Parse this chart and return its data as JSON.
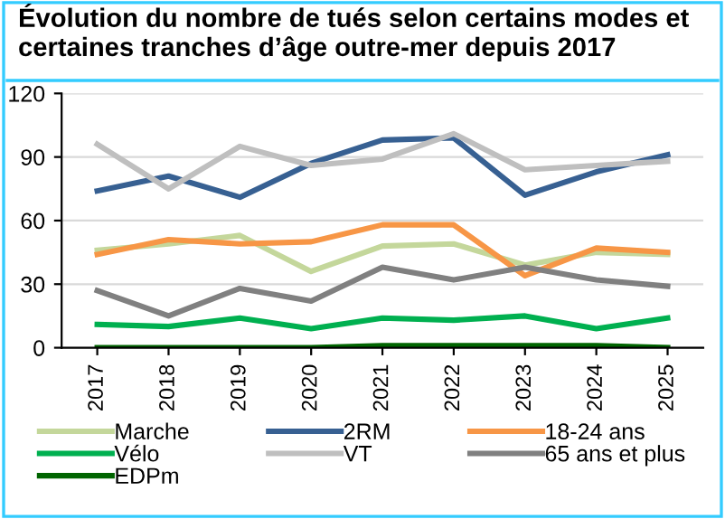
{
  "chart_data": {
    "type": "line",
    "title": "Évolution du nombre de tués selon certains modes et certaines tranches d’âge outre-mer depuis 2017",
    "categories": [
      "2017",
      "2018",
      "2019",
      "2020",
      "2021",
      "2022",
      "2023",
      "2024",
      "2025"
    ],
    "series": [
      {
        "name": "Marche",
        "color": "#c4d79b",
        "values": [
          46,
          49,
          53,
          36,
          48,
          49,
          39,
          45,
          44
        ]
      },
      {
        "name": "Vélo",
        "color": "#00b050",
        "values": [
          11,
          10,
          14,
          9,
          14,
          13,
          15,
          9,
          14
        ]
      },
      {
        "name": "EDPm",
        "color": "#006400",
        "values": [
          0,
          0,
          0,
          0,
          1,
          1,
          1,
          1,
          0
        ]
      },
      {
        "name": "2RM",
        "color": "#376092",
        "values": [
          74,
          81,
          71,
          87,
          98,
          99,
          72,
          83,
          91
        ]
      },
      {
        "name": "VT",
        "color": "#bfbfbf",
        "values": [
          96,
          75,
          95,
          86,
          89,
          101,
          84,
          86,
          88
        ]
      },
      {
        "name": "18-24 ans",
        "color": "#f79646",
        "values": [
          44,
          51,
          49,
          50,
          58,
          58,
          34,
          47,
          45
        ]
      },
      {
        "name": "65 ans et plus",
        "color": "#808080",
        "values": [
          27,
          15,
          28,
          22,
          38,
          32,
          38,
          32,
          29
        ]
      }
    ],
    "ylim": [
      0,
      120
    ],
    "yticks": [
      0,
      30,
      60,
      90,
      120
    ],
    "grid": "y",
    "legend": "bottom",
    "marker": "none",
    "line_style": "solid"
  }
}
